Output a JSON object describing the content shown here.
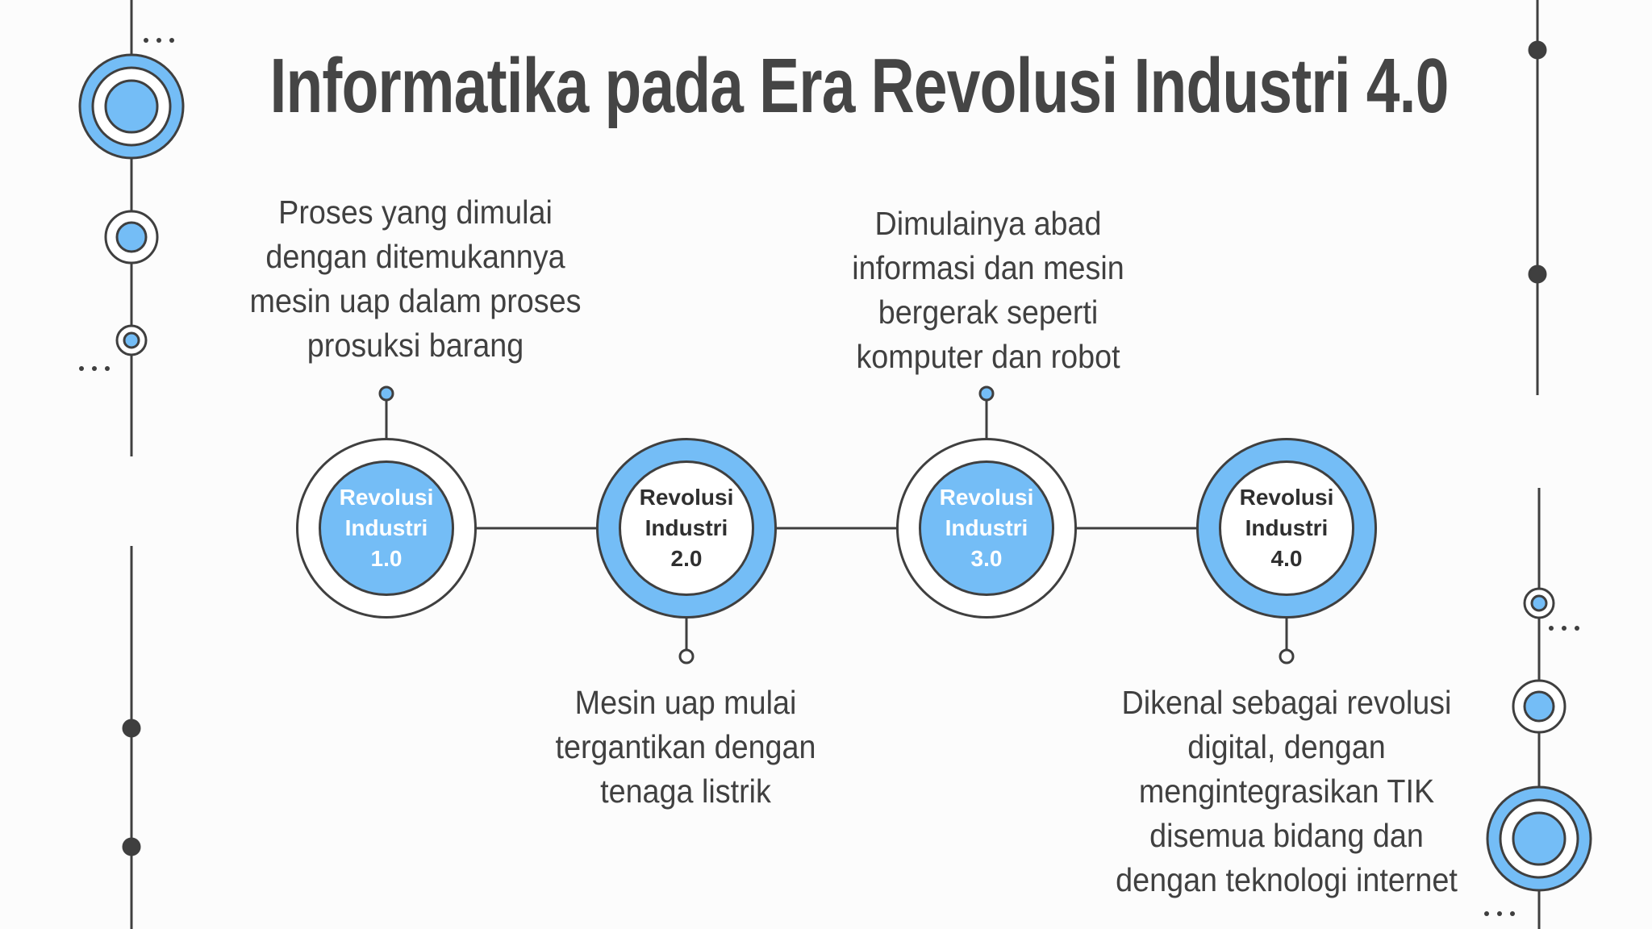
{
  "title": "Informatika pada Era Revolusi Industri 4.0",
  "colors": {
    "accent": "#74bdf6",
    "line": "#3f3f3f",
    "background": "#fcfcfc"
  },
  "stages": [
    {
      "label_lines": [
        "Revolusi",
        "Industri",
        "1.0"
      ],
      "description_lines": [
        "Proses yang dimulai",
        "dengan ditemukannya",
        "mesin uap dalam proses",
        "prosuksi barang"
      ]
    },
    {
      "label_lines": [
        "Revolusi",
        "Industri",
        "2.0"
      ],
      "description_lines": [
        "Mesin uap mulai",
        "tergantikan dengan",
        "tenaga listrik"
      ]
    },
    {
      "label_lines": [
        "Revolusi",
        "Industri",
        "3.0"
      ],
      "description_lines": [
        "Dimulainya abad",
        "informasi dan mesin",
        "bergerak seperti",
        "komputer dan robot"
      ]
    },
    {
      "label_lines": [
        "Revolusi",
        "Industri",
        "4.0"
      ],
      "description_lines": [
        "Dikenal sebagai revolusi",
        "digital, dengan",
        "mengintegrasikan TIK",
        "disemua bidang dan",
        "dengan teknologi internet"
      ]
    }
  ]
}
